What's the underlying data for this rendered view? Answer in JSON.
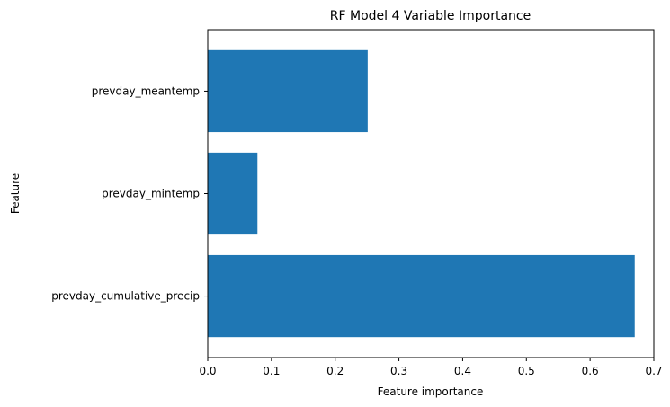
{
  "chart_data": {
    "type": "bar",
    "orientation": "horizontal",
    "title": "RF Model 4 Variable Importance",
    "xlabel": "Feature importance",
    "ylabel": "Feature",
    "categories": [
      "prevday_cumulative_precip",
      "prevday_mintemp",
      "prevday_meantemp"
    ],
    "values": [
      0.67,
      0.078,
      0.251
    ],
    "xlim": [
      0,
      0.7
    ],
    "xticks": [
      "0.0",
      "0.1",
      "0.2",
      "0.3",
      "0.4",
      "0.5",
      "0.6",
      "0.7"
    ],
    "grid": false,
    "legend": "none",
    "bar_color": "#1f77b4"
  }
}
